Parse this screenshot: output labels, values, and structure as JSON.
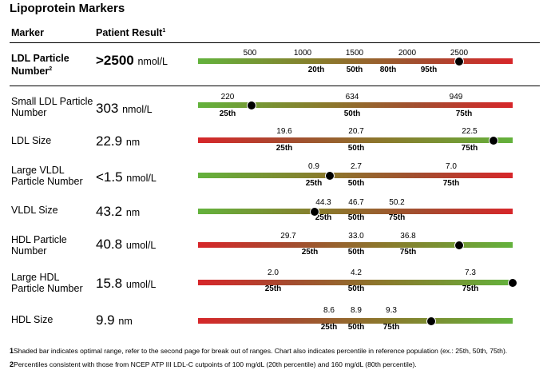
{
  "page": {
    "title": "Lipoprotein Markers",
    "col_marker": "Marker",
    "col_result": "Patient Result",
    "col_result_sup": "1"
  },
  "colors": {
    "red": "#d7262a",
    "green": "#63b23c"
  },
  "rows": [
    {
      "marker": "LDL Particle Number",
      "marker_sup": "2",
      "value": ">2500",
      "unit": "nmol/L",
      "bold": true,
      "gradient": "green-red",
      "ticks": [
        "500",
        "1000",
        "1500",
        "2000",
        "2500"
      ],
      "percentiles": [
        "20th",
        "50th",
        "80th",
        "95th"
      ],
      "dot_position": 0.83
    },
    {
      "marker": "Small LDL Particle Number",
      "value": "303",
      "unit": "nmol/L",
      "gradient": "green-red",
      "ticks": [
        "220",
        "634",
        "949"
      ],
      "percentiles": [
        "25th",
        "50th",
        "75th"
      ],
      "dot_position": 0.17
    },
    {
      "marker": "LDL Size",
      "value": "22.9",
      "unit": "nm",
      "gradient": "red-green",
      "ticks": [
        "19.6",
        "20.7",
        "22.5"
      ],
      "percentiles": [
        "25th",
        "50th",
        "75th"
      ],
      "dot_position": 0.94
    },
    {
      "marker": "Large VLDL Particle Number",
      "value": "<1.5",
      "unit": "nmol/L",
      "gradient": "green-red",
      "ticks": [
        "0.9",
        "2.7",
        "7.0"
      ],
      "percentiles": [
        "25th",
        "50th",
        "75th"
      ],
      "dot_position": 0.42
    },
    {
      "marker": "VLDL Size",
      "value": "43.2",
      "unit": "nm",
      "gradient": "green-red",
      "ticks": [
        "44.3",
        "46.7",
        "50.2"
      ],
      "percentiles": [
        "25th",
        "50th",
        "75th"
      ],
      "dot_position": 0.37
    },
    {
      "marker": "HDL Particle Number",
      "value": "40.8",
      "unit": "umol/L",
      "gradient": "red-green",
      "ticks": [
        "29.7",
        "33.0",
        "36.8"
      ],
      "percentiles": [
        "25th",
        "50th",
        "75th"
      ],
      "dot_position": 0.83
    },
    {
      "marker": "Large HDL Particle Number",
      "value": "15.8",
      "unit": "umol/L",
      "gradient": "red-green",
      "ticks": [
        "2.0",
        "4.2",
        "7.3"
      ],
      "percentiles": [
        "25th",
        "50th",
        "75th"
      ],
      "dot_position": 1.0
    },
    {
      "marker": "HDL Size",
      "value": "9.9",
      "unit": "nm",
      "gradient": "red-green",
      "ticks": [
        "8.6",
        "8.9",
        "9.3"
      ],
      "percentiles": [
        "25th",
        "50th",
        "75th"
      ],
      "dot_position": 0.74
    }
  ],
  "footnotes": [
    {
      "num": "1",
      "text": "Shaded bar indicates optimal range, refer to the second page for break out of ranges. Chart also indicates percentile in reference population (ex.: 25th, 50th, 75th)."
    },
    {
      "num": "2",
      "text": "Percentiles consistent with those from NCEP ATP III LDL-C cutpoints of 100 mg/dL (20th percentile) and 160 mg/dL (80th percentile)."
    }
  ]
}
